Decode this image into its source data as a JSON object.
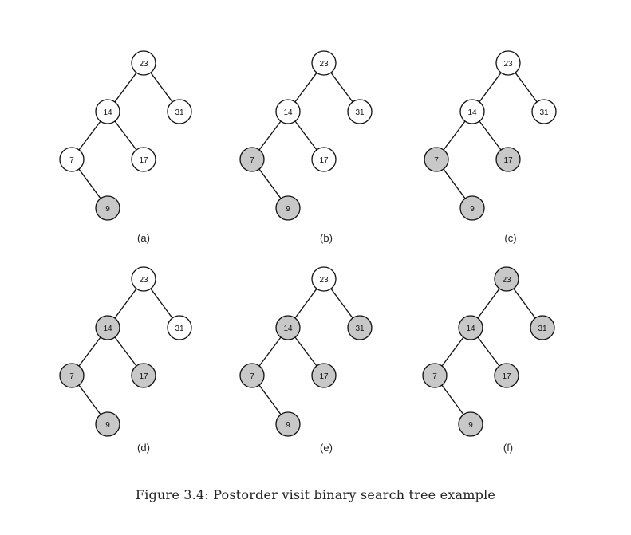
{
  "figure": {
    "caption": "Figure 3.4: Postorder visit binary search tree example",
    "fill_colors": {
      "visited": "#c8c8c8",
      "unvisited": "#ffffff",
      "stroke": "#111111"
    },
    "tree": {
      "nodes": [
        {
          "id": "n23",
          "key": "23"
        },
        {
          "id": "n14",
          "key": "14"
        },
        {
          "id": "n31",
          "key": "31"
        },
        {
          "id": "n7",
          "key": "7"
        },
        {
          "id": "n17",
          "key": "17"
        },
        {
          "id": "n9",
          "key": "9"
        }
      ],
      "edges": [
        [
          "n23",
          "n14"
        ],
        [
          "n23",
          "n31"
        ],
        [
          "n14",
          "n7"
        ],
        [
          "n14",
          "n17"
        ],
        [
          "n7",
          "n9"
        ]
      ]
    },
    "panels": [
      {
        "label": "(a)",
        "visited": [
          "n9"
        ]
      },
      {
        "label": "(b)",
        "visited": [
          "n9",
          "n7"
        ]
      },
      {
        "label": "(c)",
        "visited": [
          "n9",
          "n7",
          "n17"
        ]
      },
      {
        "label": "(d)",
        "visited": [
          "n9",
          "n7",
          "n17",
          "n14"
        ]
      },
      {
        "label": "(e)",
        "visited": [
          "n9",
          "n7",
          "n17",
          "n14",
          "n31"
        ]
      },
      {
        "label": "(f)",
        "visited": [
          "n9",
          "n7",
          "n17",
          "n14",
          "n31",
          "n23"
        ]
      }
    ]
  }
}
